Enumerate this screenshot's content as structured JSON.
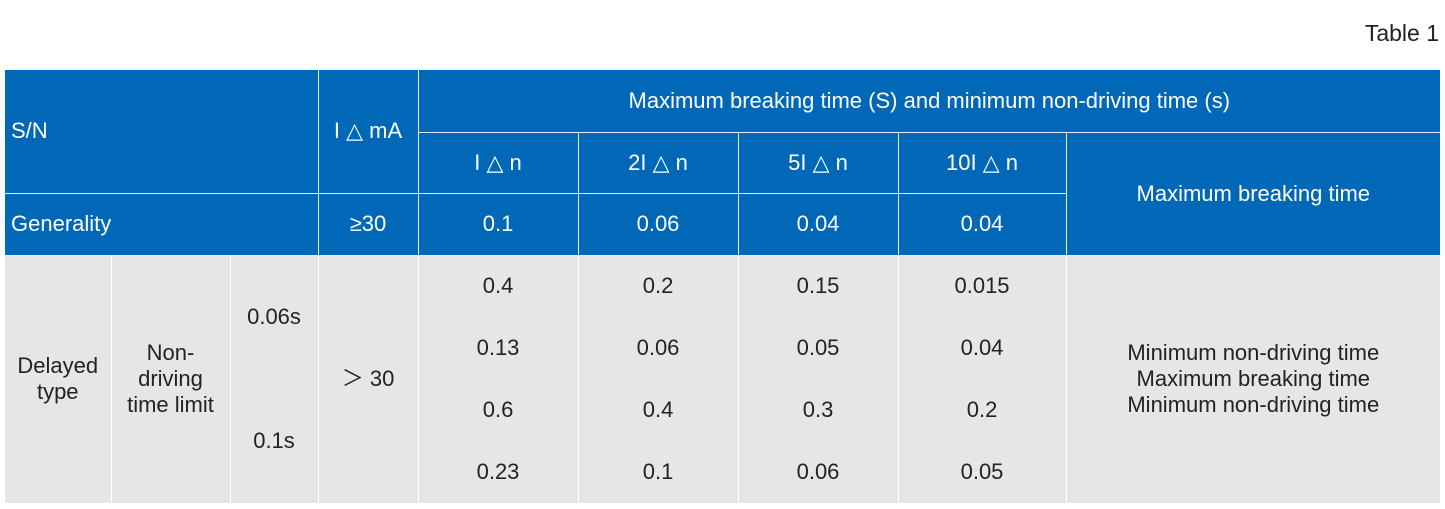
{
  "caption": "Table 1",
  "header": {
    "sn": "S/N",
    "current": "I △ mA",
    "group_title": "Maximum breaking time (S) and minimum non-driving time (s)",
    "multiples": [
      "I △ n",
      "2I △ n",
      "5I △ n",
      "10I △ n"
    ],
    "right_label": "Maximum breaking time"
  },
  "generality": {
    "label": "Generality",
    "current": "≥30",
    "values": [
      "0.1",
      "0.06",
      "0.04",
      "0.04"
    ]
  },
  "delayed": {
    "type_label": "Delayed type",
    "limit_label": "Non-driving time limit",
    "time_a": "0.06s",
    "time_b": "0.1s",
    "current": "＞ 30",
    "rows": [
      [
        "0.4",
        "0.2",
        "0.15",
        "0.015"
      ],
      [
        "0.13",
        "0.06",
        "0.05",
        "0.04"
      ],
      [
        "0.6",
        "0.4",
        "0.3",
        "0.2"
      ],
      [
        "0.23",
        "0.1",
        "0.06",
        "0.05"
      ]
    ],
    "right_lines": [
      "Minimum non-driving time",
      "Maximum breaking time",
      "Minimum non-driving time"
    ]
  }
}
